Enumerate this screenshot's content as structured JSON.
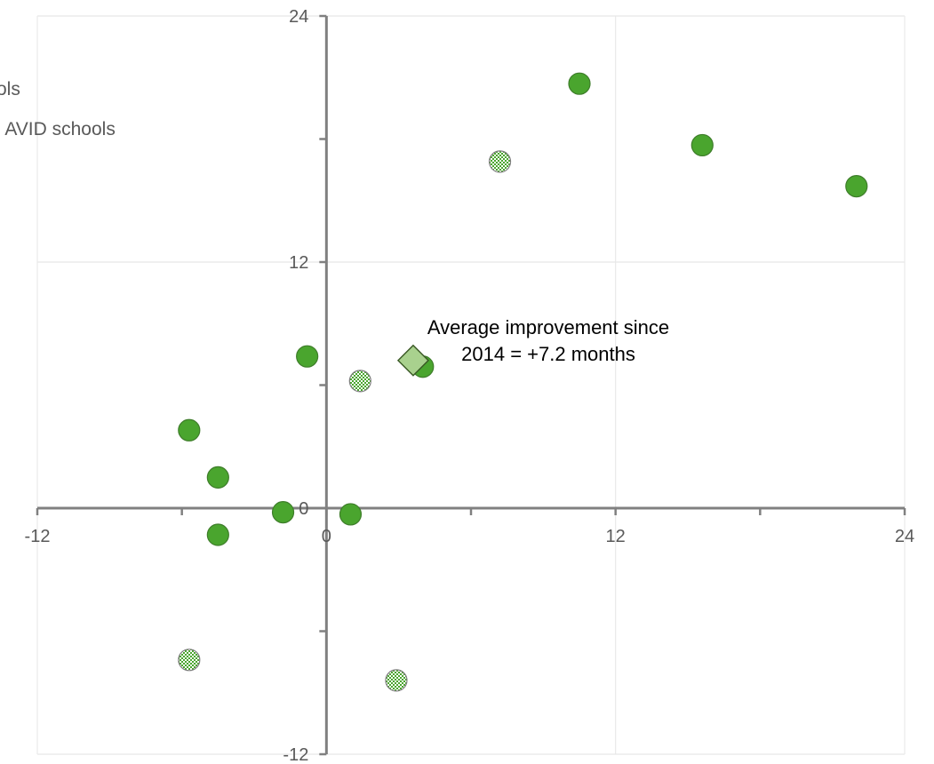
{
  "chart_data": {
    "type": "scatter",
    "xlim": [
      -12,
      24
    ],
    "ylim": [
      -12,
      24
    ],
    "x_ticks": [
      -12,
      0,
      12,
      24
    ],
    "y_ticks": [
      -12,
      12,
      24
    ],
    "y_zero_label": "0",
    "grid": true,
    "legend_position": "top-left",
    "colors": {
      "solid": "#4aa52e",
      "solid_stroke": "#3e7d2a",
      "axis": "#808080",
      "grid": "#e8e8e8",
      "diamond_fill": "#a9d18e",
      "diamond_stroke": "#385723"
    },
    "legend": [
      {
        "label": "ols",
        "marker": "solid"
      },
      {
        "label": "l AVID schools",
        "marker": "hatched"
      }
    ],
    "series": [
      {
        "marker": "solid",
        "points": [
          [
            10.5,
            20.7
          ],
          [
            15.6,
            17.7
          ],
          [
            22,
            15.7
          ],
          [
            -0.8,
            7.4
          ],
          [
            4,
            6.9
          ],
          [
            -5.7,
            3.8
          ],
          [
            -4.5,
            1.5
          ],
          [
            -1.8,
            -0.2
          ],
          [
            1,
            -0.3
          ],
          [
            -4.5,
            -1.3
          ]
        ]
      },
      {
        "marker": "hatched",
        "points": [
          [
            7.2,
            16.9
          ],
          [
            1.4,
            6.2
          ],
          [
            -5.7,
            -7.4
          ],
          [
            2.9,
            -8.4
          ]
        ]
      }
    ],
    "average_point": {
      "x": 3.6,
      "y": 7.2,
      "marker": "diamond"
    },
    "annotation_lines": [
      "Average improvement since",
      "2014 = +7.2 months"
    ]
  }
}
